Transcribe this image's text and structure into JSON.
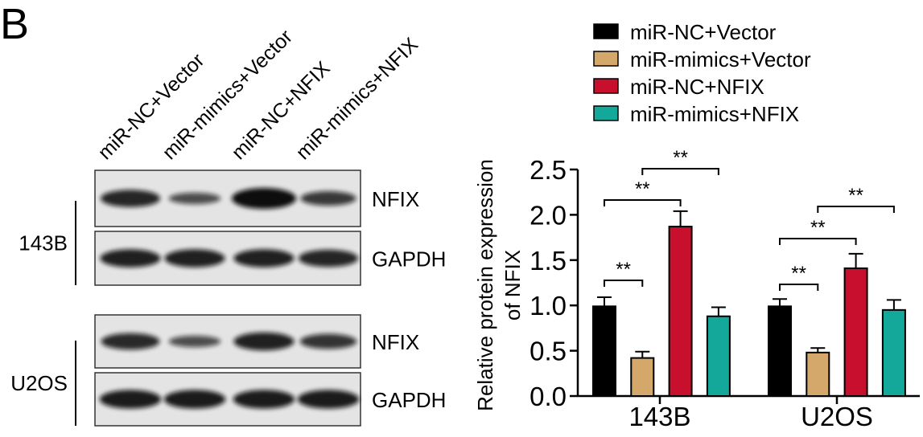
{
  "panel_label": "B",
  "blot": {
    "lanes": [
      "miR-NC+Vector",
      "miR-mimics+Vector",
      "miR-NC+NFIX",
      "miR-mimics+NFIX"
    ],
    "cell_lines": [
      "143B",
      "U2OS"
    ],
    "rows": [
      {
        "cell_line": "143B",
        "label": "NFIX",
        "band_intensity": [
          0.75,
          0.35,
          1.0,
          0.55
        ]
      },
      {
        "cell_line": "143B",
        "label": "GAPDH",
        "band_intensity": [
          0.8,
          0.8,
          0.8,
          0.75
        ]
      },
      {
        "cell_line": "U2OS",
        "label": "NFIX",
        "band_intensity": [
          0.7,
          0.35,
          0.8,
          0.6
        ]
      },
      {
        "cell_line": "U2OS",
        "label": "GAPDH",
        "band_intensity": [
          0.85,
          0.85,
          0.85,
          0.85
        ]
      }
    ]
  },
  "chart_data": {
    "type": "bar",
    "categories": [
      "143B",
      "U2OS"
    ],
    "ylabel": "Relative protein expression of NFIX",
    "ylabel_lines": [
      "Relative protein expression",
      "of NFIX"
    ],
    "ylim": [
      0,
      2.5
    ],
    "yticks": [
      "0.0",
      "0.5",
      "1.0",
      "1.5",
      "2.0",
      "2.5"
    ],
    "grid": false,
    "legend_position": "top",
    "series": [
      {
        "name": "miR-NC+Vector",
        "color": "#000000",
        "values": [
          0.99,
          0.99
        ],
        "errors": [
          0.1,
          0.08
        ]
      },
      {
        "name": "miR-mimics+Vector",
        "color": "#d4a86a",
        "values": [
          0.42,
          0.48
        ],
        "errors": [
          0.07,
          0.05
        ]
      },
      {
        "name": "miR-NC+NFIX",
        "color": "#c8102e",
        "values": [
          1.87,
          1.41
        ],
        "errors": [
          0.17,
          0.16
        ]
      },
      {
        "name": "miR-mimics+NFIX",
        "color": "#14a89a",
        "values": [
          0.88,
          0.95
        ],
        "errors": [
          0.1,
          0.11
        ]
      }
    ],
    "significance": [
      {
        "category": "143B",
        "from": 0,
        "to": 1,
        "label": "**"
      },
      {
        "category": "143B",
        "from": 0,
        "to": 2,
        "label": "**"
      },
      {
        "category": "143B",
        "from": 1,
        "to": 3,
        "label": "**"
      },
      {
        "category": "U2OS",
        "from": 0,
        "to": 1,
        "label": "**"
      },
      {
        "category": "U2OS",
        "from": 0,
        "to": 2,
        "label": "**"
      },
      {
        "category": "U2OS",
        "from": 1,
        "to": 3,
        "label": "**"
      }
    ]
  }
}
